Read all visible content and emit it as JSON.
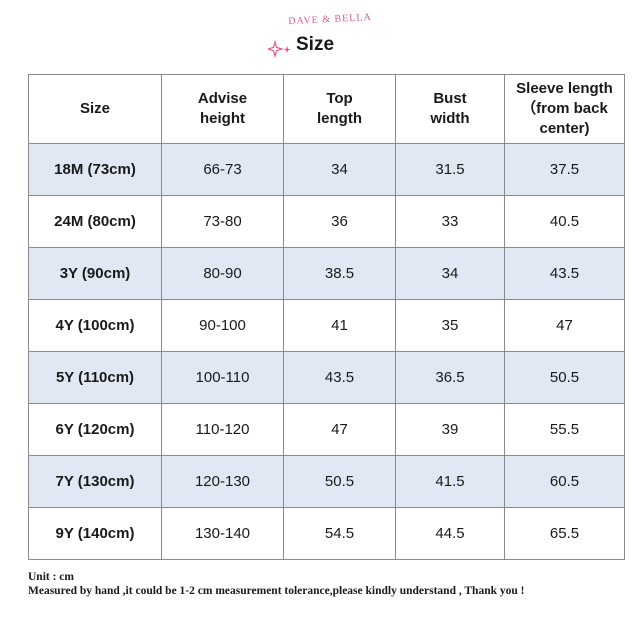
{
  "header": {
    "brand": "DAVE & BELLA",
    "title": "Size",
    "accent_color": "#e4588a"
  },
  "table": {
    "columns": [
      "Size",
      "Advise height",
      "Top length",
      "Bust width",
      "Sleeve length （from back center)"
    ],
    "rows": [
      [
        "18M (73cm)",
        "66-73",
        "34",
        "31.5",
        "37.5"
      ],
      [
        "24M (80cm)",
        "73-80",
        "36",
        "33",
        "40.5"
      ],
      [
        "3Y (90cm)",
        "80-90",
        "38.5",
        "34",
        "43.5"
      ],
      [
        "4Y (100cm)",
        "90-100",
        "41",
        "35",
        "47"
      ],
      [
        "5Y (110cm)",
        "100-110",
        "43.5",
        "36.5",
        "50.5"
      ],
      [
        "6Y (120cm)",
        "110-120",
        "47",
        "39",
        "55.5"
      ],
      [
        "7Y (130cm)",
        "120-130",
        "50.5",
        "41.5",
        "60.5"
      ],
      [
        "9Y (140cm)",
        "130-140",
        "54.5",
        "44.5",
        "65.5"
      ]
    ],
    "shade_color": "#dfe8f3"
  },
  "footer": {
    "unit": "Unit : cm",
    "note": "Measured by hand ,it could be 1-2 cm measurement tolerance,please kindly understand , Thank you !"
  }
}
